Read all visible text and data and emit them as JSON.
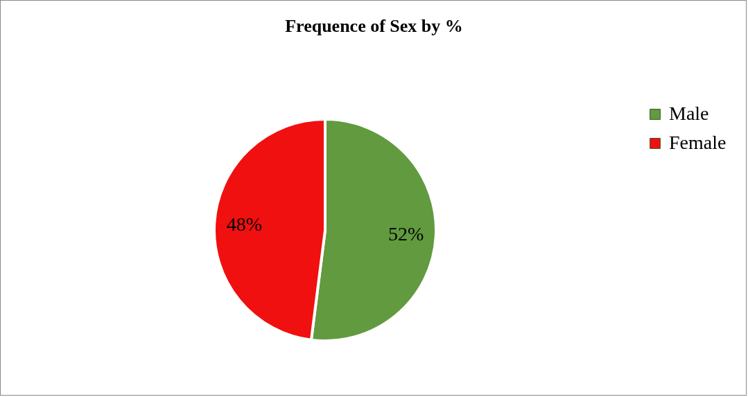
{
  "chart_data": {
    "type": "pie",
    "title": "Frequence of Sex by %",
    "categories": [
      "Male",
      "Female"
    ],
    "values": [
      52,
      48
    ],
    "colors": [
      "#619a3f",
      "#f01010"
    ],
    "value_labels": [
      "52%",
      "48%"
    ],
    "legend": "right"
  }
}
